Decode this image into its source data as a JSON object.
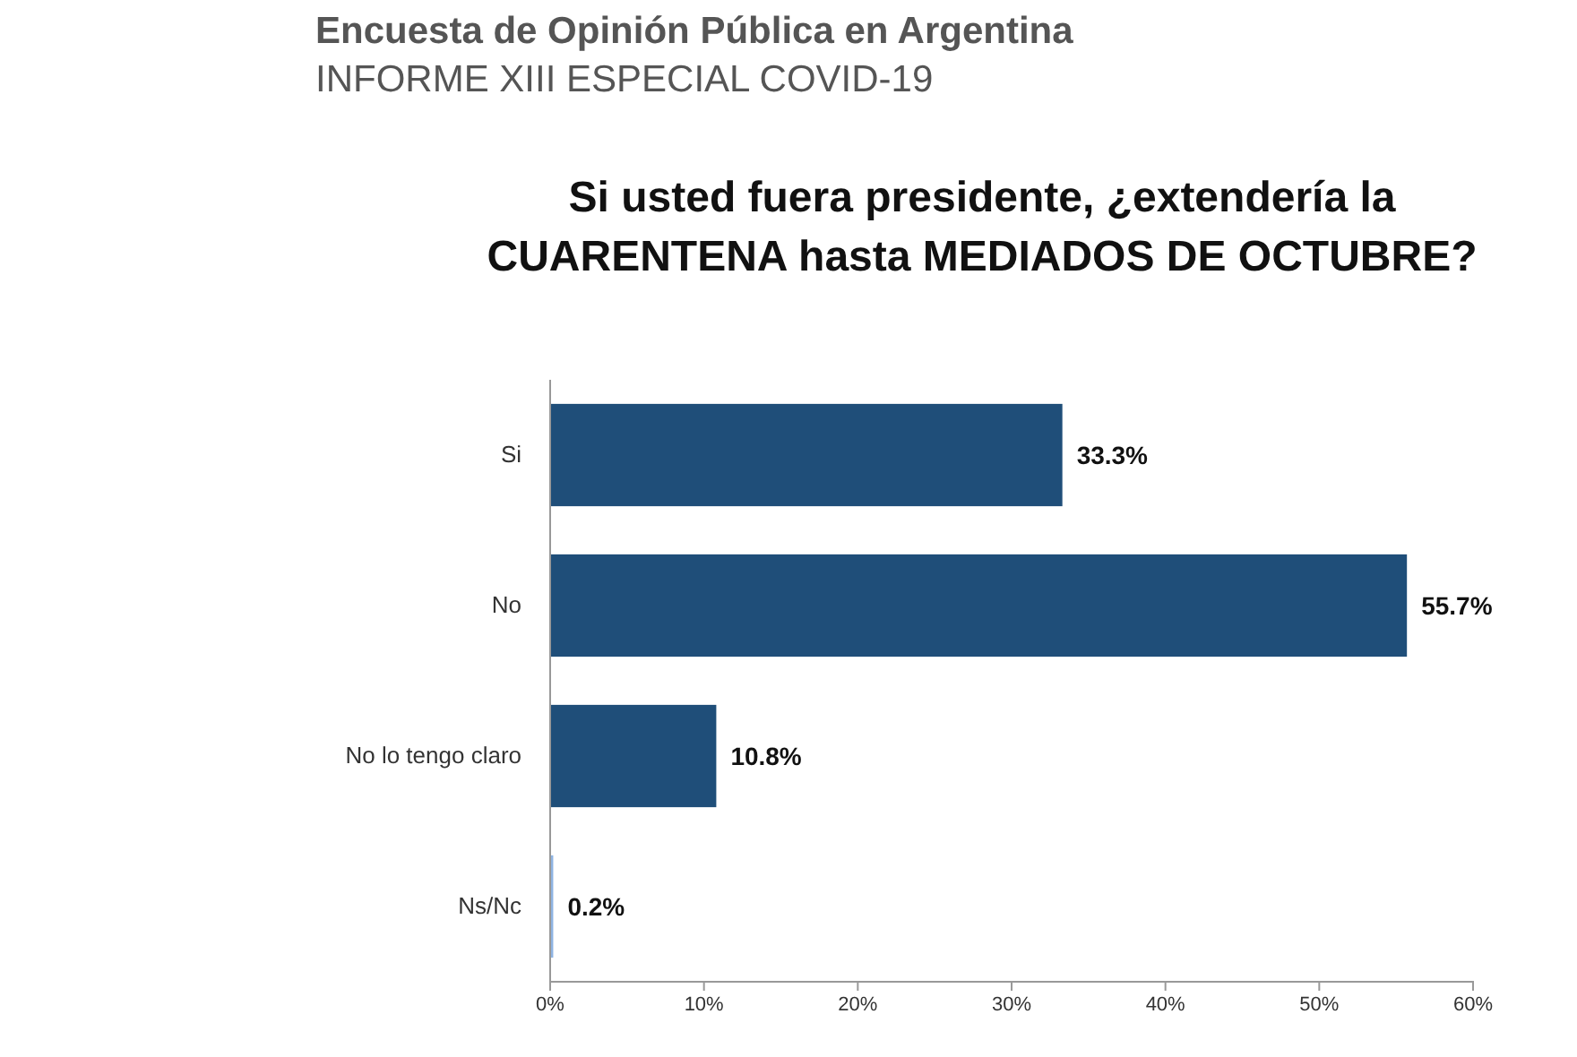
{
  "chart_data": {
    "type": "bar",
    "orientation": "horizontal",
    "title": "Si usted fuera presidente, ¿extendería la CUARENTENA hasta MEDIADOS DE OCTUBRE?",
    "annotations": [
      "Encuesta de Opinión Pública en Argentina",
      "INFORME XIII ESPECIAL COVID-19"
    ],
    "categories": [
      "Si",
      "No",
      "No lo tengo claro",
      "Ns/Nc"
    ],
    "values": [
      33.3,
      55.7,
      10.8,
      0.2
    ],
    "colors": [
      "#1f4e79",
      "#1f4e79",
      "#1f4e79",
      "#8eb4e3"
    ],
    "value_labels": [
      "33.3%",
      "55.7%",
      "10.8%",
      "0.2%"
    ],
    "xlim": [
      0,
      60
    ],
    "xticks": [
      {
        "value": 0,
        "label": "0%"
      },
      {
        "value": 10,
        "label": "10%"
      },
      {
        "value": 20,
        "label": "20%"
      },
      {
        "value": 30,
        "label": "30%"
      },
      {
        "value": 40,
        "label": "40%"
      },
      {
        "value": 50,
        "label": "50%"
      },
      {
        "value": 60,
        "label": "60%"
      }
    ],
    "grid": false
  }
}
